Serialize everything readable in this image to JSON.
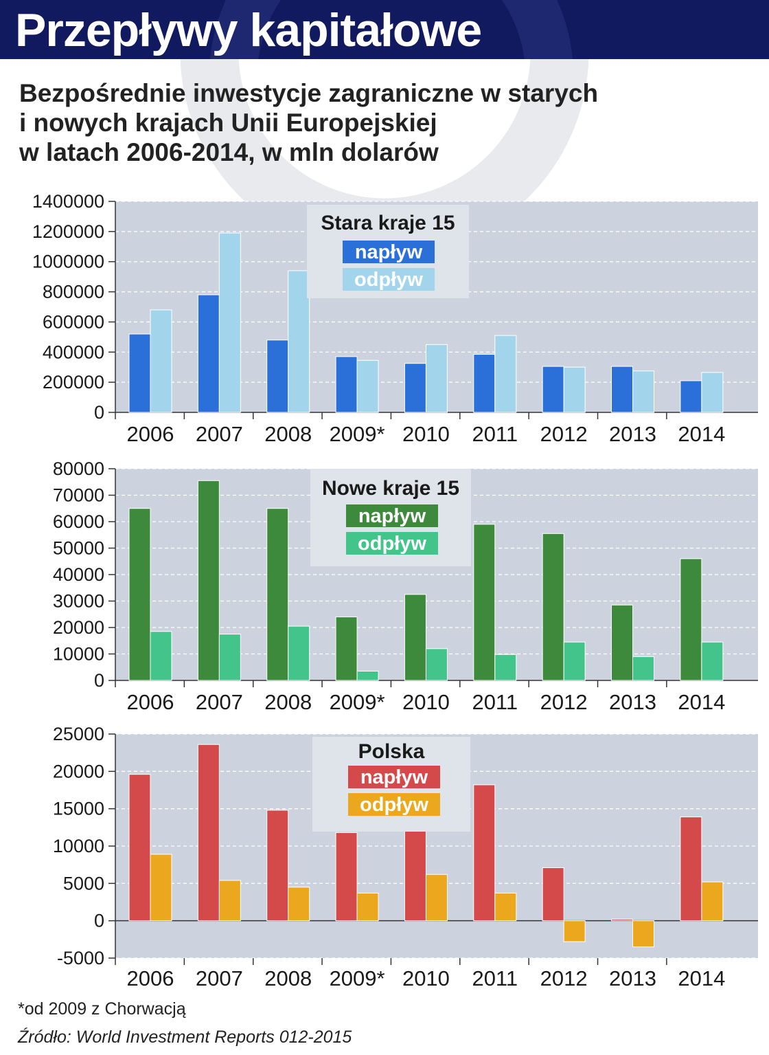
{
  "header": {
    "title": "Przepływy kapitałowe"
  },
  "subtitle_lines": [
    "Bezpośrednie inwestycje zagraniczne w starych",
    "i nowych krajach Unii Europejskiej",
    "w latach 2006-2014, w mln dolarów"
  ],
  "footnote": "*od 2009 z Chorwacją",
  "source": "Źródło: World Investment Reports 012-2015",
  "chart_data": [
    {
      "type": "bar",
      "title": "Stara kraje 15",
      "categories": [
        "2006",
        "2007",
        "2008",
        "2009*",
        "2010",
        "2011",
        "2012",
        "2013",
        "2014"
      ],
      "series": [
        {
          "name": "napływ",
          "color": "#2b6fd8",
          "values": [
            520000,
            780000,
            480000,
            370000,
            325000,
            385000,
            305000,
            305000,
            210000
          ]
        },
        {
          "name": "odpływ",
          "color": "#a2d5ec",
          "values": [
            680000,
            1190000,
            940000,
            345000,
            450000,
            510000,
            300000,
            275000,
            265000
          ]
        }
      ],
      "ylim": [
        0,
        1400000
      ],
      "yticks": [
        "1400000",
        "1200000",
        "1000000",
        "800000",
        "600000",
        "400000",
        "200000",
        "0"
      ],
      "ytick_values": [
        1400000,
        1200000,
        1000000,
        800000,
        600000,
        400000,
        200000,
        0
      ],
      "grid": true,
      "legend": "top-center"
    },
    {
      "type": "bar",
      "title": "Nowe kraje 15",
      "categories": [
        "2006",
        "2007",
        "2008",
        "2009*",
        "2010",
        "2011",
        "2012",
        "2013",
        "2014"
      ],
      "series": [
        {
          "name": "napływ",
          "color": "#3d8a3c",
          "values": [
            65000,
            75500,
            65000,
            24000,
            32500,
            59000,
            55500,
            28500,
            46000
          ]
        },
        {
          "name": "odpływ",
          "color": "#43c48a",
          "values": [
            18500,
            17500,
            20500,
            3500,
            12000,
            9800,
            14500,
            9000,
            14500
          ]
        }
      ],
      "ylim": [
        0,
        80000
      ],
      "yticks": [
        "80000",
        "70000",
        "60000",
        "50000",
        "40000",
        "30000",
        "20000",
        "10000",
        "0"
      ],
      "ytick_values": [
        80000,
        70000,
        60000,
        50000,
        40000,
        30000,
        20000,
        10000,
        0
      ],
      "grid": true,
      "legend": "top-center"
    },
    {
      "type": "bar",
      "title": "Polska",
      "categories": [
        "2006",
        "2007",
        "2008",
        "2009*",
        "2010",
        "2011",
        "2012",
        "2013",
        "2014"
      ],
      "series": [
        {
          "name": "napływ",
          "color": "#d44a4a",
          "values": [
            19600,
            23600,
            14800,
            11800,
            12800,
            18200,
            7100,
            200,
            13900
          ]
        },
        {
          "name": "odpływ",
          "color": "#eba71e",
          "values": [
            8900,
            5400,
            4500,
            3700,
            6200,
            3700,
            -2800,
            -3500,
            5200
          ]
        }
      ],
      "ylim": [
        -5000,
        25000
      ],
      "yticks": [
        "25000",
        "20000",
        "15000",
        "10000",
        "5000",
        "0",
        "-5000"
      ],
      "ytick_values": [
        25000,
        20000,
        15000,
        10000,
        5000,
        0,
        -5000
      ],
      "grid": true,
      "legend": "top-center"
    }
  ]
}
